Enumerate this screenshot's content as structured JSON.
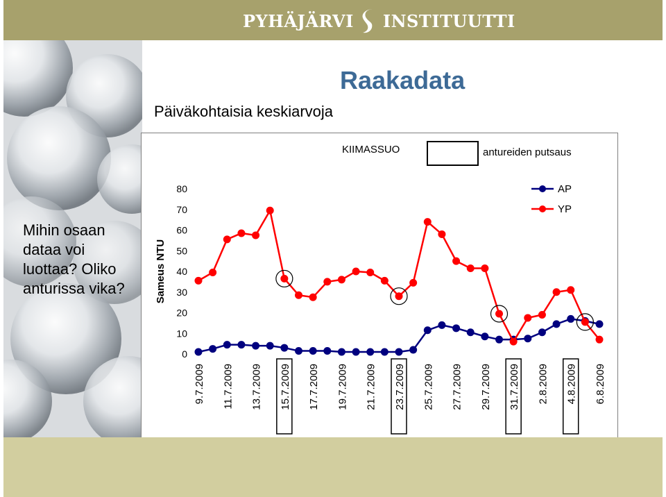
{
  "logo": {
    "text": "PYHÄJÄRVI INSTITUUTTI"
  },
  "heading": "Raakadata",
  "subheading": "Päiväkohtaisia keskiarvoja",
  "question": "Mihin osaan dataa voi luottaa? Oliko anturissa vika?",
  "site_label": "KIIMASSUO",
  "cleaning_label": "antureiden putsaus",
  "colors": {
    "AP": "#00007f",
    "YP": "#ff0000",
    "heading": "#3d6a96",
    "top_band": "#a7a16c",
    "bottom_band": "#d2ce9f"
  },
  "chart_data": {
    "type": "line",
    "ylabel": "Sameus NTU",
    "xlabel": "",
    "ylim": [
      0,
      80
    ],
    "yticks": [
      0,
      10,
      20,
      30,
      40,
      50,
      60,
      70,
      80
    ],
    "legend_position": "top-right",
    "grid": false,
    "x": [
      "9.7.2009",
      "10.7.2009",
      "11.7.2009",
      "12.7.2009",
      "13.7.2009",
      "14.7.2009",
      "15.7.2009",
      "16.7.2009",
      "17.7.2009",
      "18.7.2009",
      "19.7.2009",
      "20.7.2009",
      "21.7.2009",
      "22.7.2009",
      "23.7.2009",
      "24.7.2009",
      "25.7.2009",
      "26.7.2009",
      "27.7.2009",
      "28.7.2009",
      "29.7.2009",
      "30.7.2009",
      "31.7.2009",
      "1.8.2009",
      "2.8.2009",
      "3.8.2009",
      "4.8.2009",
      "5.8.2009",
      "6.8.2009"
    ],
    "xtick_labels": [
      "9.7.2009",
      "11.7.2009",
      "13.7.2009",
      "15.7.2009",
      "17.7.2009",
      "19.7.2009",
      "21.7.2009",
      "23.7.2009",
      "25.7.2009",
      "27.7.2009",
      "29.7.2009",
      "31.7.2009",
      "2.8.2009",
      "4.8.2009",
      "6.8.2009"
    ],
    "series": [
      {
        "name": "AP",
        "values": [
          1,
          2.5,
          4.5,
          4.5,
          4,
          4,
          3,
          1.5,
          1.5,
          1.5,
          1,
          1,
          1,
          1,
          1,
          2,
          11.5,
          14,
          12.5,
          10.5,
          8.5,
          7,
          7,
          7.5,
          10.5,
          14.5,
          17,
          16,
          14.5
        ]
      },
      {
        "name": "YP",
        "values": [
          35.5,
          39.5,
          55.5,
          58.5,
          57.5,
          69.5,
          36.5,
          28.5,
          27.5,
          35,
          36,
          40,
          39.5,
          35.5,
          28,
          34.5,
          64,
          58,
          45,
          41.5,
          41.5,
          19.5,
          6,
          17.5,
          19,
          30,
          31,
          15.5,
          7
        ]
      }
    ],
    "highlighted_points": [
      {
        "series": "YP",
        "x": "15.7.2009"
      },
      {
        "series": "YP",
        "x": "23.7.2009"
      },
      {
        "series": "YP",
        "x": "30.7.2009"
      },
      {
        "series": "YP",
        "x": "5.8.2009"
      }
    ],
    "boxed_tick_labels": [
      "15.7.2009",
      "23.7.2009",
      "31.7.2009",
      "4.8.2009"
    ]
  }
}
